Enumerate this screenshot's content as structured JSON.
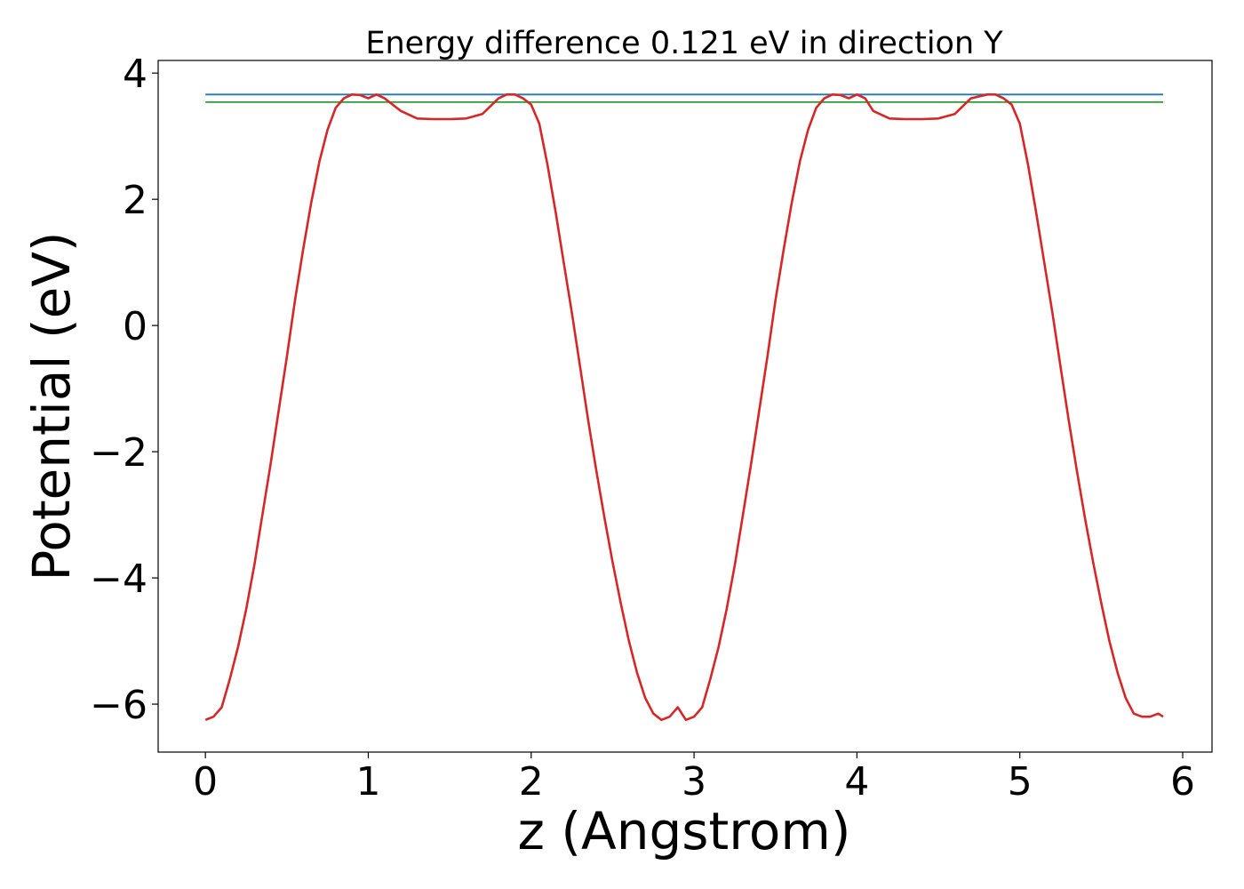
{
  "chart_data": {
    "type": "line",
    "title": "Energy difference 0.121 eV in direction Y",
    "xlabel": "z (Angstrom)",
    "ylabel": "Potential (eV)",
    "xlim": [
      -0.29,
      6.18
    ],
    "ylim": [
      -6.76,
      4.2
    ],
    "xticks": [
      0,
      1,
      2,
      3,
      4,
      5,
      6
    ],
    "xtick_labels": [
      "0",
      "1",
      "2",
      "3",
      "4",
      "5",
      "6"
    ],
    "yticks": [
      -6,
      -4,
      -2,
      0,
      2,
      4
    ],
    "ytick_labels": [
      "−6",
      "−4",
      "−2",
      "0",
      "2",
      "4"
    ],
    "grid": false,
    "legend": false,
    "series": [
      {
        "color": "#1f77b4",
        "x": [
          0,
          5.88
        ],
        "y": [
          3.66,
          3.66
        ]
      },
      {
        "color": "#2ca02c",
        "x": [
          0,
          5.88
        ],
        "y": [
          3.54,
          3.54
        ]
      },
      {
        "color": "#d62728",
        "x": [
          0,
          0.05,
          0.1,
          0.15,
          0.2,
          0.25,
          0.3,
          0.35,
          0.4,
          0.45,
          0.5,
          0.55,
          0.6,
          0.65,
          0.7,
          0.75,
          0.8,
          0.85,
          0.9,
          0.95,
          1.0,
          1.05,
          1.1,
          1.2,
          1.3,
          1.4,
          1.5,
          1.6,
          1.7,
          1.8,
          1.85,
          1.9,
          1.95,
          2.0,
          2.05,
          2.1,
          2.15,
          2.2,
          2.25,
          2.3,
          2.35,
          2.4,
          2.45,
          2.5,
          2.55,
          2.6,
          2.65,
          2.7,
          2.75,
          2.8,
          2.85,
          2.9,
          2.95,
          3.0,
          3.05,
          3.1,
          3.15,
          3.2,
          3.25,
          3.3,
          3.35,
          3.4,
          3.45,
          3.5,
          3.55,
          3.6,
          3.65,
          3.7,
          3.75,
          3.8,
          3.85,
          3.9,
          3.95,
          4.0,
          4.05,
          4.1,
          4.2,
          4.3,
          4.4,
          4.5,
          4.6,
          4.7,
          4.8,
          4.85,
          4.9,
          4.95,
          5.0,
          5.05,
          5.1,
          5.15,
          5.2,
          5.25,
          5.3,
          5.35,
          5.4,
          5.45,
          5.5,
          5.55,
          5.6,
          5.65,
          5.7,
          5.75,
          5.8,
          5.85,
          5.88
        ],
        "y": [
          -6.25,
          -6.2,
          -6.05,
          -5.6,
          -5.1,
          -4.5,
          -3.8,
          -3.0,
          -2.2,
          -1.35,
          -0.5,
          0.4,
          1.2,
          1.95,
          2.6,
          3.1,
          3.45,
          3.6,
          3.66,
          3.65,
          3.6,
          3.66,
          3.6,
          3.4,
          3.28,
          3.27,
          3.27,
          3.28,
          3.35,
          3.6,
          3.66,
          3.66,
          3.6,
          3.5,
          3.2,
          2.55,
          1.8,
          1.0,
          0.2,
          -0.65,
          -1.5,
          -2.3,
          -3.05,
          -3.75,
          -4.4,
          -5.0,
          -5.5,
          -5.9,
          -6.15,
          -6.25,
          -6.2,
          -6.05,
          -6.25,
          -6.2,
          -6.05,
          -5.6,
          -5.1,
          -4.5,
          -3.8,
          -3.0,
          -2.2,
          -1.35,
          -0.5,
          0.4,
          1.2,
          1.95,
          2.6,
          3.1,
          3.45,
          3.6,
          3.66,
          3.65,
          3.6,
          3.66,
          3.6,
          3.4,
          3.28,
          3.27,
          3.27,
          3.28,
          3.35,
          3.6,
          3.66,
          3.66,
          3.6,
          3.5,
          3.2,
          2.55,
          1.8,
          1.0,
          0.2,
          -0.65,
          -1.5,
          -2.3,
          -3.05,
          -3.75,
          -4.4,
          -5.0,
          -5.5,
          -5.9,
          -6.15,
          -6.2,
          -6.2,
          -6.15,
          -6.2
        ]
      }
    ]
  }
}
